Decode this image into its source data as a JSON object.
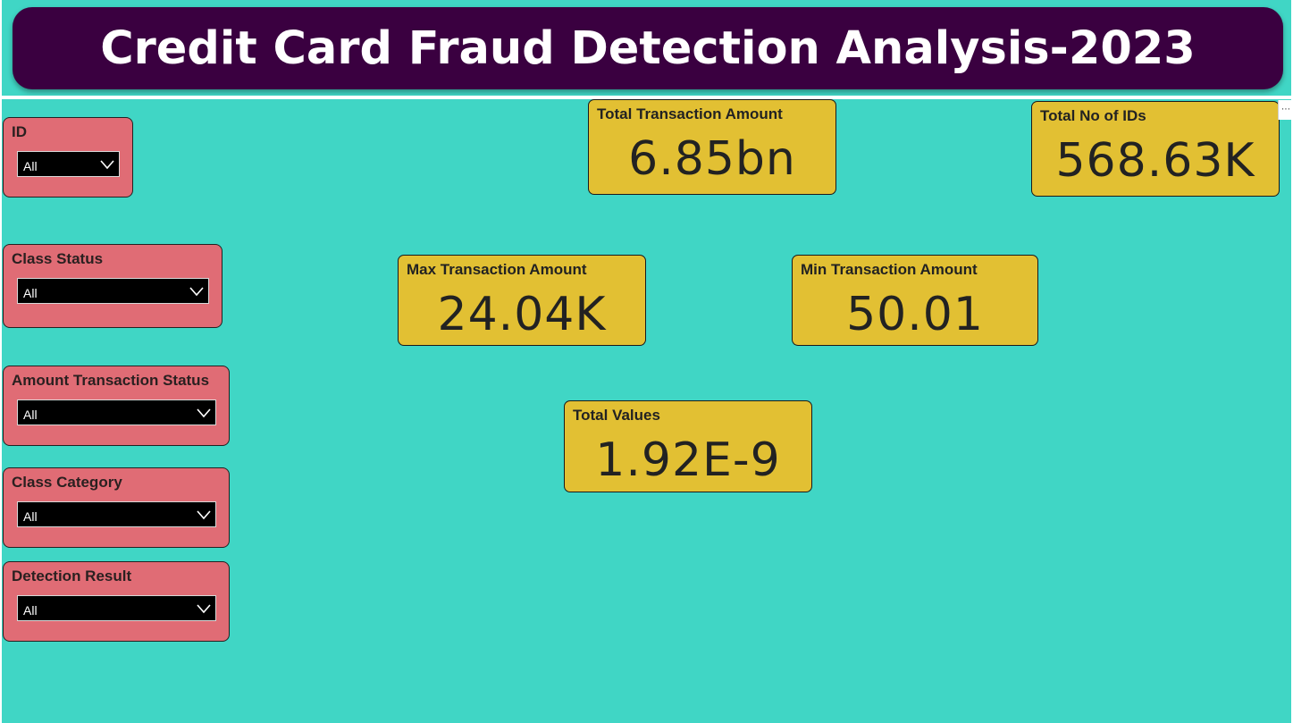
{
  "header": {
    "title": "Credit Card Fraud Detection Analysis-2023"
  },
  "slicers": [
    {
      "label": "ID",
      "value": "All"
    },
    {
      "label": "Class Status",
      "value": "All"
    },
    {
      "label": "Amount Transaction Status",
      "value": "All"
    },
    {
      "label": "Class Category",
      "value": "All"
    },
    {
      "label": "Detection Result",
      "value": "All"
    }
  ],
  "cards": {
    "total_transaction_amount": {
      "label": "Total Transaction Amount",
      "value": "6.85bn"
    },
    "total_no_of_ids": {
      "label": "Total No of IDs",
      "value": "568.63K"
    },
    "max_transaction_amount": {
      "label": "Max Transaction Amount",
      "value": "24.04K"
    },
    "min_transaction_amount": {
      "label": "Min Transaction Amount",
      "value": "50.01"
    },
    "total_values": {
      "label": "Total Values",
      "value": "1.92E-9"
    }
  },
  "colors": {
    "background": "#40d6c5",
    "title_bar": "#3a0040",
    "slicer_bg": "#e06c75",
    "card_bg": "#e2c033"
  }
}
